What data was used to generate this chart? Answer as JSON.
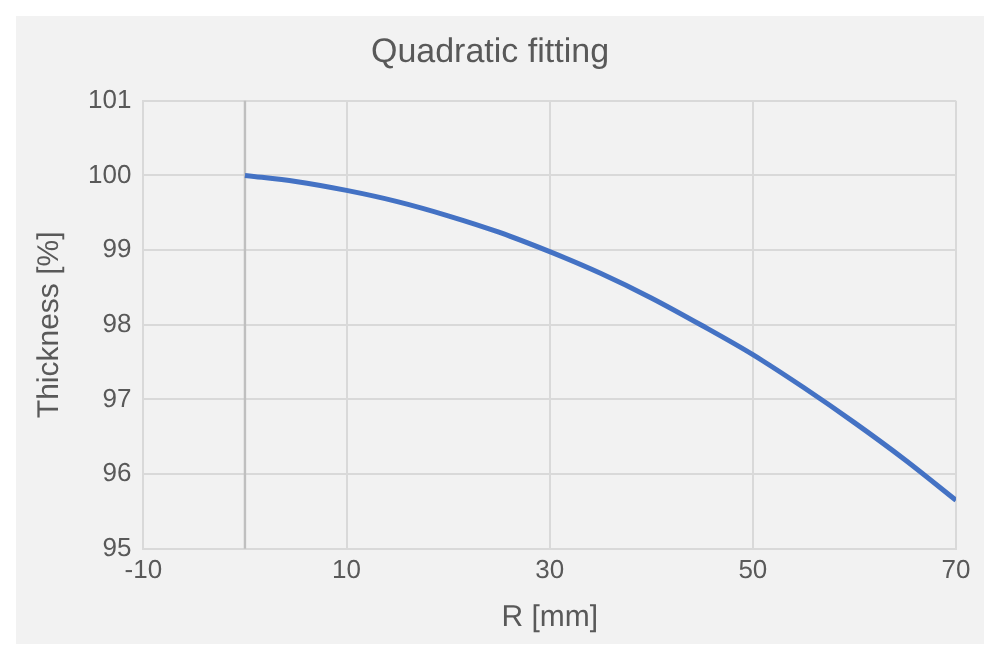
{
  "chart_data": {
    "type": "line",
    "title": "Quadratic fitting",
    "xlabel": "R [mm]",
    "ylabel": "Thickness [%]",
    "x": [
      0,
      5,
      10,
      15,
      20,
      25,
      30,
      35,
      40,
      45,
      50,
      55,
      60,
      65,
      70
    ],
    "series": [
      {
        "color": "#4472c4",
        "values": [
          100,
          99.92,
          99.8,
          99.65,
          99.46,
          99.24,
          98.98,
          98.69,
          98.36,
          97.99,
          97.6,
          97.16,
          96.69,
          96.19,
          95.65
        ]
      }
    ],
    "xlim": [
      -10,
      70
    ],
    "xticks": [
      -10,
      10,
      30,
      50,
      70
    ],
    "ylim": [
      95,
      101
    ],
    "yticks": [
      95,
      96,
      97,
      98,
      99,
      100,
      101
    ],
    "ref_lines": [
      {
        "axis": "x",
        "value": 0,
        "color": "#bfbfbf"
      }
    ],
    "grid": true,
    "legend": false,
    "marker": "none",
    "line_style": "solid"
  }
}
